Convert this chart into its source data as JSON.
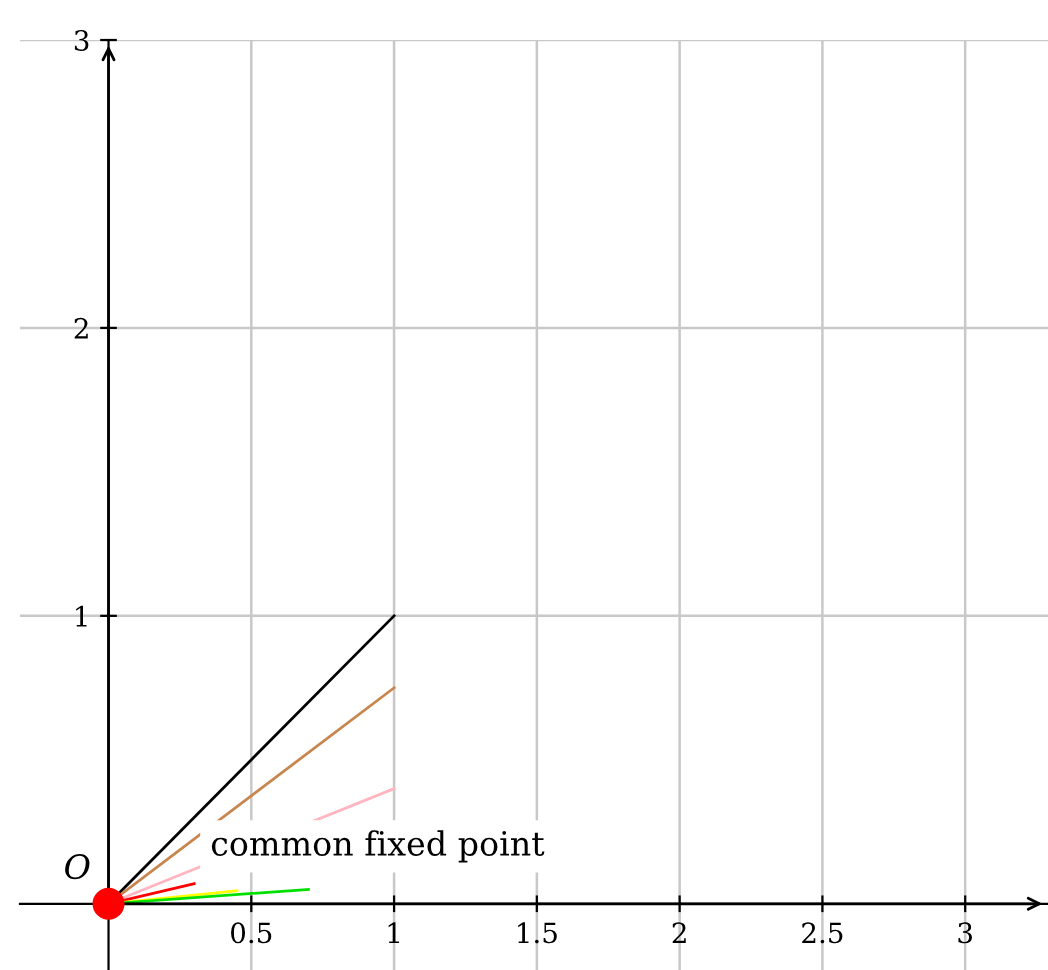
{
  "chart_data": {
    "type": "line",
    "series": [
      {
        "color": "#000000",
        "x": [
          0,
          1
        ],
        "values": [
          0,
          1
        ]
      },
      {
        "color": "#c8864e",
        "x": [
          0,
          1
        ],
        "values": [
          0,
          0.75
        ]
      },
      {
        "color": "#ffb6c1",
        "x": [
          0,
          1
        ],
        "values": [
          0,
          0.4
        ]
      },
      {
        "color": "#ff0000",
        "x": [
          0,
          0.3
        ],
        "values": [
          0,
          0.07
        ]
      },
      {
        "color": "#ffff00",
        "x": [
          0,
          0.45
        ],
        "values": [
          0,
          0.045
        ]
      },
      {
        "color": "#00e000",
        "x": [
          0,
          0.7
        ],
        "values": [
          0,
          0.05
        ]
      },
      {
        "type": "scatter",
        "color": "#ff0000",
        "x": [
          0
        ],
        "values": [
          0
        ],
        "marker": "circle"
      }
    ],
    "annotations": [
      "O",
      "common fixed point"
    ],
    "xlim": [
      -0.31,
      3.29
    ],
    "ylim": [
      -0.23,
      3.0
    ],
    "xticks": [
      0.5,
      1,
      1.5,
      2,
      2.5,
      3
    ],
    "yticks": [
      1,
      2,
      3
    ],
    "grid": true,
    "marker": "none",
    "line_style": "solid"
  }
}
